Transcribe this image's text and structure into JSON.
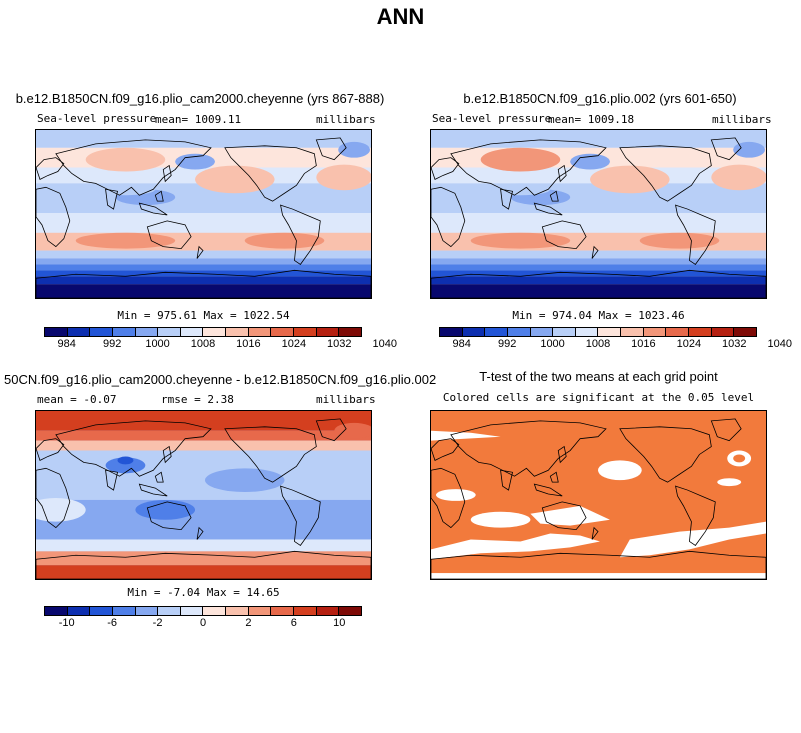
{
  "title": "ANN",
  "panels": {
    "case1": {
      "title": "b.e12.B1850CN.f09_g16.plio_cam2000.cheyenne (yrs 867-888)",
      "variable": "Sea-level pressure",
      "mean_label": "mean= 1009.11",
      "units": "millibars",
      "minmax": "Min = 975.61 Max = 1022.54"
    },
    "case2": {
      "title": "b.e12.B1850CN.f09_g16.plio.002 (yrs 601-650)",
      "variable": "Sea-level pressure",
      "mean_label": "mean= 1009.18",
      "units": "millibars",
      "minmax": "Min = 974.04 Max = 1023.46"
    },
    "diff": {
      "title": "50CN.f09_g16.plio_cam2000.cheyenne - b.e12.B1850CN.f09_g16.plio.002",
      "mean_label": "mean =  -0.07",
      "rmse_label": "rmse =   2.38",
      "units": "millibars",
      "minmax": "Min =  -7.04 Max =  14.65"
    },
    "ttest": {
      "title": "T-test of the two means at each grid point",
      "subtitle": "Colored cells are significant at the 0.05 level"
    }
  },
  "colorbars": {
    "slp_ticks": [
      "984",
      "992",
      "1000",
      "1008",
      "1016",
      "1024",
      "1032",
      "1040"
    ],
    "diff_ticks": [
      "-10",
      "-6",
      "-2",
      "0",
      "2",
      "6",
      "10"
    ],
    "colors": [
      "#08086e",
      "#0d2fb0",
      "#2255d6",
      "#4f7fe8",
      "#86a8f0",
      "#b8cff7",
      "#dde8fb",
      "#fde5dc",
      "#f9c1ad",
      "#f29679",
      "#e7694b",
      "#d43f1f",
      "#b52011",
      "#7e0a06"
    ]
  },
  "colors": {
    "ttest_fill": "#f27a3c",
    "coast": "#000000"
  }
}
